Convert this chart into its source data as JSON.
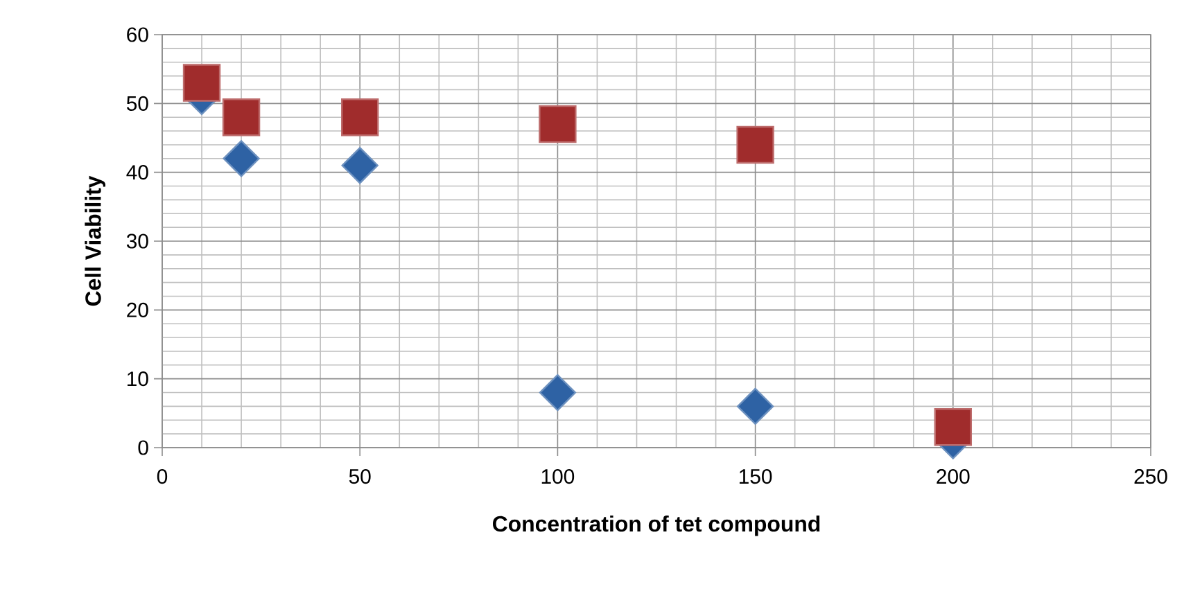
{
  "chart_data": {
    "type": "scatter",
    "xlabel": "Concentration of tet compound",
    "ylabel": "Cell Viability",
    "x": [
      10,
      20,
      50,
      100,
      150,
      200
    ],
    "series": [
      {
        "color": "#2e62a4",
        "marker": "diamond",
        "values": [
          51,
          42,
          41,
          8,
          6,
          1
        ]
      },
      {
        "color": "#a02c2c",
        "marker": "square",
        "values": [
          53,
          48,
          48,
          47,
          44,
          3
        ]
      }
    ],
    "xlim": [
      0,
      250
    ],
    "xticks": [
      0,
      50,
      100,
      150,
      200,
      250
    ],
    "ylim": [
      0,
      60
    ],
    "yticks": [
      0,
      10,
      20,
      30,
      40,
      50,
      60
    ],
    "grid": true
  }
}
